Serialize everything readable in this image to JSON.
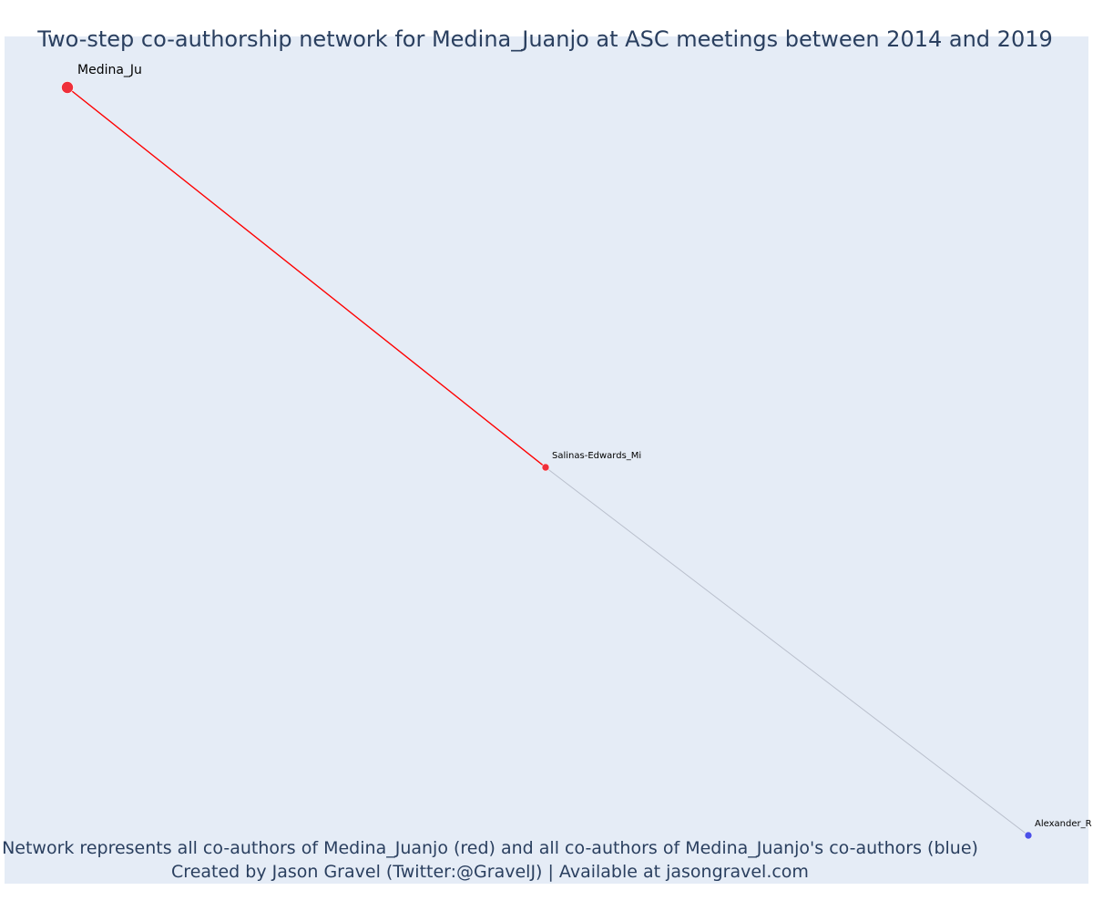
{
  "title": "Two-step co-authorship network for Medina_Juanjo at ASC meetings between 2014 and 2019",
  "caption": {
    "line1": "Network represents all co-authors of Medina_Juanjo (red) and all co-authors of Medina_Juanjo's co-authors (blue)",
    "line2": "Created by Jason Gravel (Twitter:@GravelJ) | Available at jasongravel.com"
  },
  "colors": {
    "plot_background": "#e5ecf6",
    "first_degree": "#ef2f3a",
    "second_degree": "#4a50e8",
    "ego_edge": "#ff0000",
    "other_edge": "#b9bfcc",
    "text": "#2a3f5f"
  },
  "chart_data": {
    "type": "network",
    "nodes": [
      {
        "id": "Medina_Ju",
        "label": "Medina_Ju",
        "group": "ego",
        "color": "#ef2f3a"
      },
      {
        "id": "Salinas-Edwards_Mi",
        "label": "Salinas-Edwards_Mi",
        "group": "co-author",
        "color": "#ef2f3a"
      },
      {
        "id": "Alexander_R",
        "label": "Alexander_R",
        "group": "co-author-of-co-author",
        "color": "#4a50e8"
      }
    ],
    "edges": [
      {
        "source": "Medina_Ju",
        "target": "Salinas-Edwards_Mi",
        "color": "#ff0000"
      },
      {
        "source": "Salinas-Edwards_Mi",
        "target": "Alexander_R",
        "color": "#b9bfcc"
      }
    ]
  }
}
